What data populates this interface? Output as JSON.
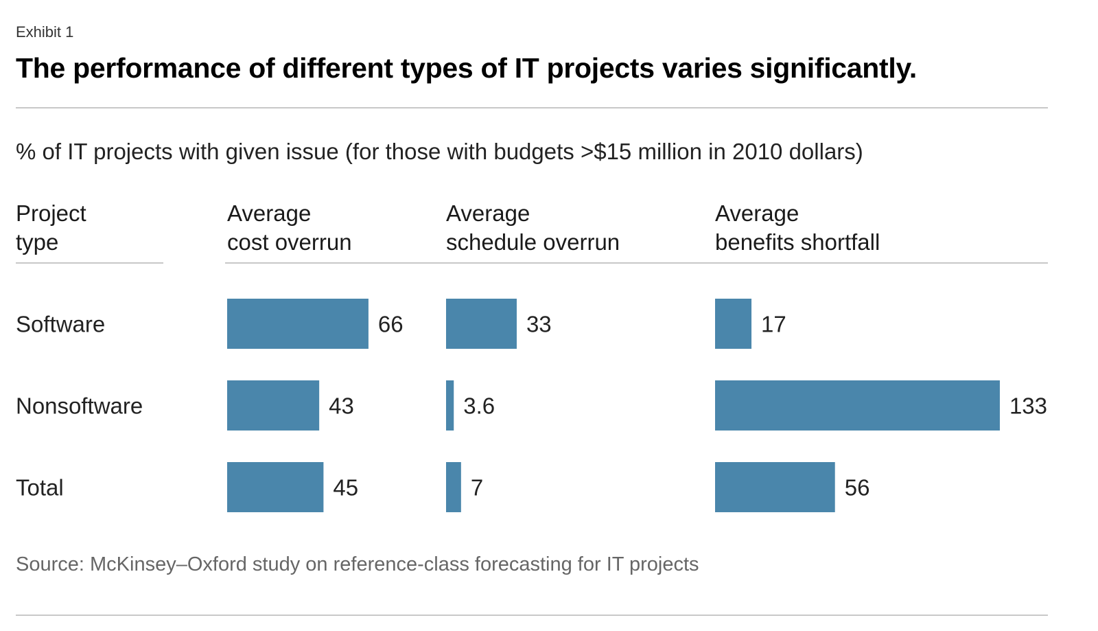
{
  "exhibit_label": "Exhibit 1",
  "title": "The performance of different types of IT projects varies significantly.",
  "chart_data": {
    "type": "bar",
    "orientation": "horizontal",
    "subtitle": "% of IT projects with given issue (for those with budgets >$15 million in 2010 dollars)",
    "row_header": "Project\ntype",
    "categories": [
      "Software",
      "Nonsoftware",
      "Total"
    ],
    "series": [
      {
        "name": "Average\ncost overrun",
        "values": [
          66,
          43,
          45
        ],
        "labels": [
          "66",
          "43",
          "45"
        ]
      },
      {
        "name": "Average\nschedule overrun",
        "values": [
          33,
          3.6,
          7
        ],
        "labels": [
          "33",
          "3.6",
          "7"
        ]
      },
      {
        "name": "Average\nbenefits shortfall",
        "values": [
          17,
          133,
          56
        ],
        "labels": [
          "17",
          "133",
          "56"
        ]
      }
    ],
    "source": "Source: McKinsey–Oxford study on reference-class forecasting for IT projects"
  },
  "colors": {
    "bar": "#4a86ab",
    "rule": "#c8c8c8"
  }
}
